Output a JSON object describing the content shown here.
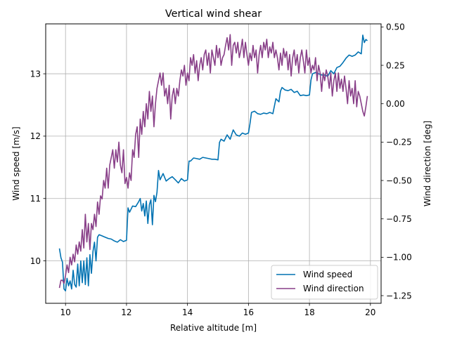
{
  "chart_data": {
    "type": "line",
    "title": "Vertical wind shear",
    "xlabel": "Relative altitude [m]",
    "ylabel_left": "Wind speed [m/s]",
    "ylabel_right": "Wind direction [deg]",
    "xlim": [
      9.35,
      20.35
    ],
    "ylim_left": [
      9.32,
      13.8
    ],
    "ylim_right": [
      -1.3,
      0.52
    ],
    "x_ticks": [
      10,
      12,
      14,
      16,
      18,
      20
    ],
    "x_tick_labels": [
      "10",
      "12",
      "14",
      "16",
      "18",
      "20"
    ],
    "y_left_ticks": [
      10,
      11,
      12,
      13
    ],
    "y_left_tick_labels": [
      "10",
      "11",
      "12",
      "13"
    ],
    "y_right_ticks": [
      -1.25,
      -1.0,
      -0.75,
      -0.5,
      -0.25,
      0.0,
      0.25,
      0.5
    ],
    "y_right_tick_labels": [
      "−1.25",
      "−1.00",
      "−0.75",
      "−0.50",
      "−0.25",
      "0.00",
      "0.25",
      "0.50"
    ],
    "grid": true,
    "legend_position": "lower-right",
    "series": [
      {
        "name": "Wind speed",
        "axis": "left",
        "color": "#0072b2",
        "x": [
          9.8,
          9.85,
          9.9,
          9.95,
          10.0,
          10.05,
          10.1,
          10.15,
          10.2,
          10.25,
          10.3,
          10.35,
          10.4,
          10.45,
          10.5,
          10.55,
          10.6,
          10.65,
          10.7,
          10.75,
          10.8,
          10.85,
          10.9,
          10.95,
          11.0,
          11.05,
          11.1,
          11.2,
          11.3,
          11.4,
          11.5,
          11.6,
          11.7,
          11.8,
          11.9,
          12.0,
          12.05,
          12.1,
          12.2,
          12.3,
          12.4,
          12.45,
          12.5,
          12.55,
          12.6,
          12.65,
          12.7,
          12.75,
          12.8,
          12.85,
          12.9,
          12.95,
          13.0,
          13.05,
          13.1,
          13.2,
          13.3,
          13.4,
          13.5,
          13.6,
          13.7,
          13.8,
          13.9,
          14.0,
          14.05,
          14.1,
          14.2,
          14.3,
          14.4,
          14.5,
          14.6,
          14.7,
          14.8,
          14.9,
          15.0,
          15.05,
          15.1,
          15.2,
          15.3,
          15.4,
          15.5,
          15.6,
          15.7,
          15.8,
          15.9,
          16.0,
          16.05,
          16.1,
          16.2,
          16.3,
          16.4,
          16.5,
          16.6,
          16.7,
          16.8,
          16.9,
          17.0,
          17.05,
          17.1,
          17.2,
          17.3,
          17.4,
          17.5,
          17.6,
          17.7,
          17.8,
          17.9,
          18.0,
          18.05,
          18.1,
          18.2,
          18.3,
          18.4,
          18.5,
          18.6,
          18.7,
          18.8,
          18.9,
          19.0,
          19.1,
          19.2,
          19.3,
          19.4,
          19.5,
          19.6,
          19.7,
          19.75,
          19.8,
          19.85,
          19.9
        ],
        "values": [
          10.2,
          10.05,
          9.98,
          9.55,
          9.52,
          9.72,
          9.6,
          9.68,
          9.55,
          9.85,
          9.62,
          9.58,
          9.95,
          9.6,
          10.0,
          9.65,
          10.0,
          9.62,
          10.05,
          9.6,
          10.1,
          9.8,
          10.15,
          10.3,
          10.0,
          10.38,
          10.42,
          10.4,
          10.38,
          10.36,
          10.35,
          10.32,
          10.3,
          10.34,
          10.31,
          10.33,
          10.85,
          10.78,
          10.88,
          10.87,
          10.95,
          11.0,
          10.8,
          10.92,
          10.72,
          10.96,
          10.6,
          10.9,
          10.98,
          10.58,
          11.05,
          10.95,
          11.1,
          11.45,
          11.3,
          11.4,
          11.28,
          11.32,
          11.35,
          11.3,
          11.25,
          11.32,
          11.28,
          11.3,
          11.6,
          11.6,
          11.65,
          11.64,
          11.63,
          11.66,
          11.65,
          11.64,
          11.63,
          11.63,
          11.62,
          11.9,
          11.95,
          11.92,
          12.02,
          11.95,
          12.1,
          12.02,
          12.0,
          12.05,
          12.03,
          12.05,
          12.2,
          12.38,
          12.4,
          12.36,
          12.35,
          12.37,
          12.36,
          12.38,
          12.36,
          12.6,
          12.55,
          12.72,
          12.78,
          12.74,
          12.73,
          12.75,
          12.7,
          12.72,
          12.65,
          12.66,
          12.65,
          12.66,
          12.9,
          13.0,
          13.02,
          13.0,
          12.98,
          12.98,
          12.96,
          13.05,
          13.0,
          13.1,
          13.12,
          13.18,
          13.25,
          13.3,
          13.28,
          13.3,
          13.35,
          13.32,
          13.62,
          13.5,
          13.55,
          13.53
        ]
      },
      {
        "name": "Wind direction",
        "axis": "right",
        "color": "#883f88",
        "x": [
          9.8,
          9.85,
          9.9,
          9.95,
          10.0,
          10.05,
          10.1,
          10.15,
          10.2,
          10.25,
          10.3,
          10.35,
          10.4,
          10.45,
          10.5,
          10.55,
          10.6,
          10.65,
          10.7,
          10.75,
          10.8,
          10.85,
          10.9,
          10.95,
          11.0,
          11.05,
          11.1,
          11.15,
          11.2,
          11.25,
          11.3,
          11.35,
          11.4,
          11.45,
          11.5,
          11.55,
          11.6,
          11.65,
          11.7,
          11.75,
          11.8,
          11.85,
          11.9,
          11.95,
          12.0,
          12.05,
          12.1,
          12.15,
          12.2,
          12.25,
          12.3,
          12.35,
          12.4,
          12.45,
          12.5,
          12.55,
          12.6,
          12.65,
          12.7,
          12.75,
          12.8,
          12.85,
          12.9,
          12.95,
          13.0,
          13.05,
          13.1,
          13.15,
          13.2,
          13.25,
          13.3,
          13.35,
          13.4,
          13.45,
          13.5,
          13.55,
          13.6,
          13.65,
          13.7,
          13.75,
          13.8,
          13.85,
          13.9,
          13.95,
          14.0,
          14.05,
          14.1,
          14.15,
          14.2,
          14.25,
          14.3,
          14.35,
          14.4,
          14.45,
          14.5,
          14.55,
          14.6,
          14.65,
          14.7,
          14.75,
          14.8,
          14.85,
          14.9,
          14.95,
          15.0,
          15.05,
          15.1,
          15.15,
          15.2,
          15.25,
          15.3,
          15.35,
          15.4,
          15.45,
          15.5,
          15.55,
          15.6,
          15.65,
          15.7,
          15.75,
          15.8,
          15.85,
          15.9,
          15.95,
          16.0,
          16.05,
          16.1,
          16.15,
          16.2,
          16.25,
          16.3,
          16.35,
          16.4,
          16.45,
          16.5,
          16.55,
          16.6,
          16.65,
          16.7,
          16.75,
          16.8,
          16.85,
          16.9,
          16.95,
          17.0,
          17.05,
          17.1,
          17.15,
          17.2,
          17.25,
          17.3,
          17.35,
          17.4,
          17.45,
          17.5,
          17.55,
          17.6,
          17.65,
          17.7,
          17.75,
          17.8,
          17.85,
          17.9,
          17.95,
          18.0,
          18.05,
          18.1,
          18.15,
          18.2,
          18.25,
          18.3,
          18.35,
          18.4,
          18.45,
          18.5,
          18.55,
          18.6,
          18.65,
          18.7,
          18.75,
          18.8,
          18.85,
          18.9,
          18.95,
          19.0,
          19.05,
          19.1,
          19.15,
          19.2,
          19.25,
          19.3,
          19.35,
          19.4,
          19.45,
          19.5,
          19.55,
          19.6,
          19.65,
          19.7,
          19.75,
          19.8,
          19.85,
          19.9
        ],
        "values": [
          -1.2,
          -1.15,
          -1.15,
          -1.17,
          -1.12,
          -1.05,
          -1.1,
          -1.0,
          -1.05,
          -0.98,
          -1.03,
          -0.92,
          -0.98,
          -0.9,
          -0.96,
          -0.82,
          -0.94,
          -0.72,
          -0.9,
          -0.78,
          -0.95,
          -0.78,
          -0.82,
          -0.72,
          -0.8,
          -0.64,
          -0.72,
          -0.6,
          -0.62,
          -0.5,
          -0.55,
          -0.42,
          -0.55,
          -0.4,
          -0.35,
          -0.3,
          -0.42,
          -0.3,
          -0.38,
          -0.25,
          -0.4,
          -0.45,
          -0.3,
          -0.52,
          -0.48,
          -0.55,
          -0.45,
          -0.5,
          -0.3,
          -0.35,
          -0.2,
          -0.15,
          -0.35,
          -0.1,
          -0.2,
          -0.05,
          -0.15,
          0.0,
          -0.1,
          0.08,
          -0.05,
          0.05,
          -0.15,
          0.0,
          0.1,
          0.15,
          0.2,
          0.12,
          0.2,
          0.05,
          0.1,
          0.0,
          0.12,
          -0.1,
          0.05,
          0.1,
          0.0,
          0.1,
          0.05,
          0.15,
          0.22,
          0.18,
          0.25,
          0.12,
          0.2,
          0.15,
          0.3,
          0.25,
          0.32,
          0.2,
          0.28,
          0.15,
          0.25,
          0.3,
          0.22,
          0.32,
          0.35,
          0.25,
          0.33,
          0.2,
          0.35,
          0.3,
          0.25,
          0.38,
          0.3,
          0.36,
          0.25,
          0.3,
          0.32,
          0.38,
          0.43,
          0.35,
          0.45,
          0.25,
          0.38,
          0.4,
          0.33,
          0.4,
          0.3,
          0.35,
          0.42,
          0.3,
          0.4,
          0.32,
          0.25,
          0.33,
          0.28,
          0.38,
          0.3,
          0.35,
          0.2,
          0.32,
          0.38,
          0.3,
          0.4,
          0.35,
          0.42,
          0.3,
          0.37,
          0.33,
          0.4,
          0.3,
          0.35,
          0.3,
          0.22,
          0.33,
          0.25,
          0.36,
          0.3,
          0.34,
          0.22,
          0.32,
          0.18,
          0.3,
          0.35,
          0.25,
          0.32,
          0.2,
          0.3,
          0.35,
          0.28,
          0.2,
          0.35,
          0.25,
          0.3,
          0.2,
          0.25,
          0.22,
          0.3,
          0.15,
          0.25,
          0.2,
          0.08,
          0.2,
          0.15,
          0.22,
          0.18,
          0.1,
          0.2,
          0.05,
          0.15,
          0.2,
          0.08,
          0.2,
          0.1,
          0.16,
          0.08,
          0.18,
          0.1,
          0.0,
          0.15,
          0.05,
          0.1,
          0.0,
          0.15,
          -0.02,
          0.08,
          0.05,
          0.0,
          -0.05,
          -0.08,
          -0.02,
          0.05
        ]
      }
    ]
  }
}
